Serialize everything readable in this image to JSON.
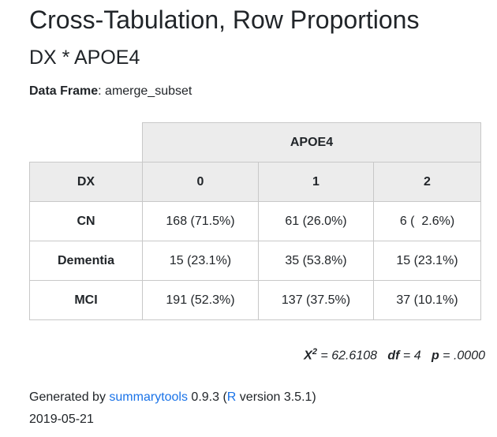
{
  "title": "Cross-Tabulation, Row Proportions",
  "subtitle": "DX * APOE4",
  "data_frame": {
    "label": "Data Frame",
    "value": ": amerge_subset"
  },
  "table": {
    "col_group": "APOE4",
    "row_header": "DX",
    "columns": [
      "0",
      "1",
      "2"
    ],
    "rows": [
      {
        "label": "CN",
        "cells": [
          "168 (71.5%)",
          "61 (26.0%)",
          "6 (  2.6%)"
        ]
      },
      {
        "label": "Dementia",
        "cells": [
          "15 (23.1%)",
          "35 (53.8%)",
          "15 (23.1%)"
        ]
      },
      {
        "label": "MCI",
        "cells": [
          "191 (52.3%)",
          "137 (37.5%)",
          "37 (10.1%)"
        ]
      }
    ]
  },
  "stats": {
    "chi_label": "X",
    "chi_sup": "2",
    "chi_value": " = 62.6108   ",
    "df_label": "df",
    "df_value": " = 4   ",
    "p_label": "p",
    "p_value": " = .0000"
  },
  "footer": {
    "generated_by": "Generated by ",
    "tool_link": "summarytools",
    "tool_version": " 0.9.3 (",
    "r_link": "R",
    "r_version": " version 3.5.1)",
    "date": "2019-05-21"
  }
}
